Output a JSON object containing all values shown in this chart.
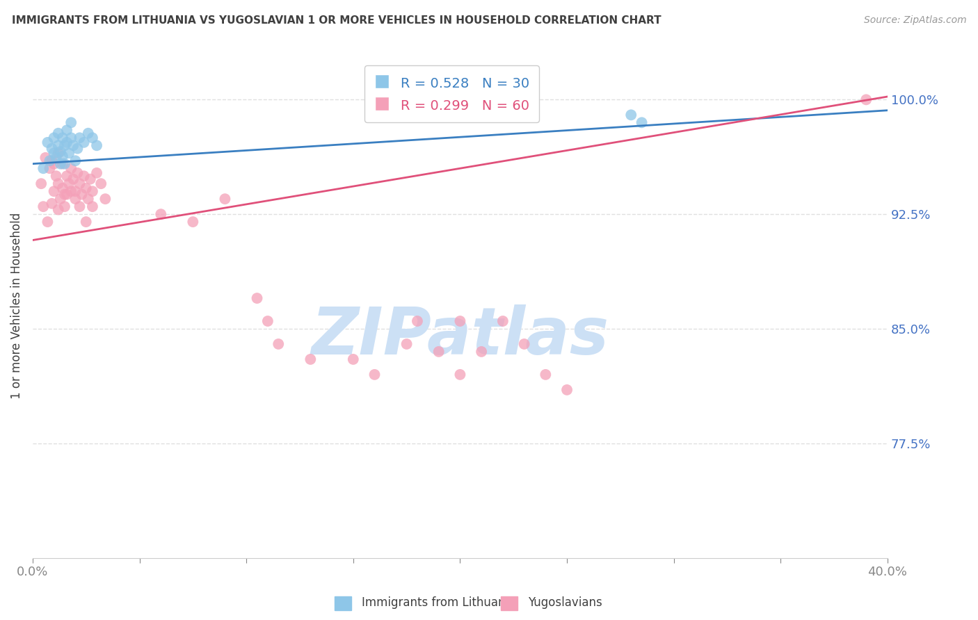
{
  "title": "IMMIGRANTS FROM LITHUANIA VS YUGOSLAVIAN 1 OR MORE VEHICLES IN HOUSEHOLD CORRELATION CHART",
  "source": "Source: ZipAtlas.com",
  "ylabel": "1 or more Vehicles in Household",
  "xlim": [
    0.0,
    0.4
  ],
  "ylim": [
    0.7,
    1.03
  ],
  "yticks": [
    0.775,
    0.85,
    0.925,
    1.0
  ],
  "ytick_labels": [
    "77.5%",
    "85.0%",
    "92.5%",
    "100.0%"
  ],
  "xticks": [
    0.0,
    0.05,
    0.1,
    0.15,
    0.2,
    0.25,
    0.3,
    0.35,
    0.4
  ],
  "xtick_labels": [
    "0.0%",
    "",
    "",
    "",
    "",
    "",
    "",
    "",
    "40.0%"
  ],
  "blue_R": 0.528,
  "blue_N": 30,
  "pink_R": 0.299,
  "pink_N": 60,
  "blue_color": "#8ec6e8",
  "pink_color": "#f4a0b8",
  "blue_line_color": "#3a7fc1",
  "pink_line_color": "#e0507a",
  "legend_blue_label": "Immigrants from Lithuania",
  "legend_pink_label": "Yugoslavians",
  "background_color": "#ffffff",
  "watermark_text": "ZIPatlas",
  "watermark_color": "#cce0f5",
  "title_color": "#404040",
  "source_color": "#999999",
  "axis_label_color": "#404040",
  "tick_label_color_y": "#4472c4",
  "tick_label_color_x": "#404040",
  "grid_color": "#e0e0e0",
  "blue_x": [
    0.005,
    0.007,
    0.008,
    0.009,
    0.01,
    0.01,
    0.011,
    0.012,
    0.012,
    0.013,
    0.013,
    0.014,
    0.014,
    0.015,
    0.015,
    0.016,
    0.016,
    0.017,
    0.018,
    0.018,
    0.019,
    0.02,
    0.021,
    0.022,
    0.024,
    0.026,
    0.028,
    0.03,
    0.28,
    0.285
  ],
  "blue_y": [
    0.955,
    0.972,
    0.96,
    0.968,
    0.975,
    0.965,
    0.962,
    0.97,
    0.978,
    0.958,
    0.966,
    0.963,
    0.975,
    0.97,
    0.958,
    0.972,
    0.98,
    0.965,
    0.975,
    0.985,
    0.97,
    0.96,
    0.968,
    0.975,
    0.972,
    0.978,
    0.975,
    0.97,
    0.99,
    0.985
  ],
  "pink_x": [
    0.004,
    0.006,
    0.008,
    0.009,
    0.01,
    0.01,
    0.011,
    0.012,
    0.012,
    0.013,
    0.014,
    0.014,
    0.015,
    0.016,
    0.016,
    0.017,
    0.018,
    0.019,
    0.02,
    0.021,
    0.022,
    0.023,
    0.024,
    0.025,
    0.026,
    0.027,
    0.028,
    0.03,
    0.032,
    0.034,
    0.005,
    0.007,
    0.009,
    0.012,
    0.015,
    0.018,
    0.02,
    0.022,
    0.025,
    0.028,
    0.06,
    0.075,
    0.09,
    0.105,
    0.11,
    0.115,
    0.13,
    0.15,
    0.16,
    0.175,
    0.19,
    0.2,
    0.21,
    0.22,
    0.23,
    0.24,
    0.25,
    0.39,
    0.18,
    0.2
  ],
  "pink_y": [
    0.945,
    0.962,
    0.955,
    0.96,
    0.94,
    0.958,
    0.95,
    0.945,
    0.965,
    0.935,
    0.942,
    0.958,
    0.93,
    0.95,
    0.938,
    0.945,
    0.955,
    0.948,
    0.94,
    0.952,
    0.945,
    0.938,
    0.95,
    0.942,
    0.935,
    0.948,
    0.94,
    0.952,
    0.945,
    0.935,
    0.93,
    0.92,
    0.932,
    0.928,
    0.938,
    0.94,
    0.935,
    0.93,
    0.92,
    0.93,
    0.925,
    0.92,
    0.935,
    0.87,
    0.855,
    0.84,
    0.83,
    0.83,
    0.82,
    0.84,
    0.835,
    0.82,
    0.835,
    0.855,
    0.84,
    0.82,
    0.81,
    1.0,
    0.855,
    0.855
  ]
}
